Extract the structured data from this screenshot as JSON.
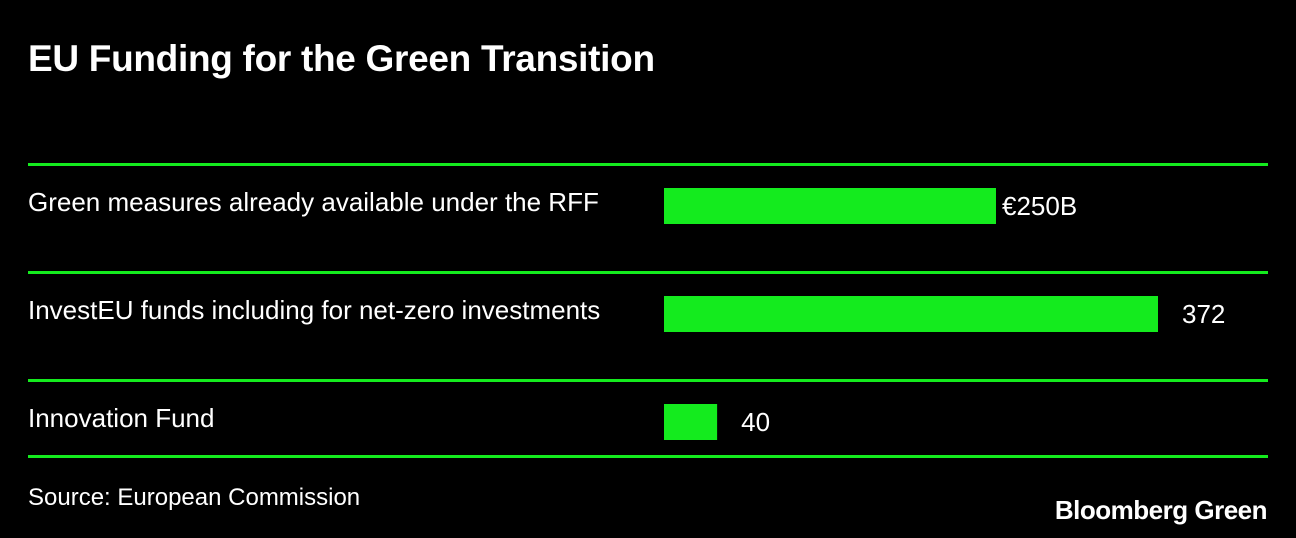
{
  "chart_data": {
    "type": "bar",
    "title": "EU Funding for the Green Transition",
    "categories": [
      "Green measures already available under the RFF",
      "InvestEU funds including for net-zero investments",
      "Innovation Fund"
    ],
    "values": [
      250,
      372,
      40
    ],
    "value_labels": [
      "€250B",
      "372",
      "40"
    ],
    "color": "#14eb1e",
    "source": "Source: European Commission",
    "brand": "Bloomberg Green"
  }
}
